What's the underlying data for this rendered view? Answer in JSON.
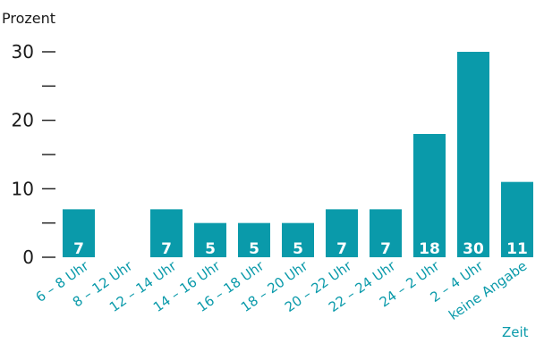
{
  "colors": {
    "bar": "#0a9aaa",
    "category_label": "#0a9aaa",
    "axis": "#1a1a1a",
    "value_label": "#ffffff"
  },
  "chart_data": {
    "type": "bar",
    "ylabel": "Prozent",
    "xlabel": "Zeit",
    "ylim": [
      0,
      30
    ],
    "yticks": [
      0,
      10,
      20,
      30
    ],
    "categories": [
      "6 – 8 Uhr",
      "8 – 12 Uhr",
      "12 – 14 Uhr",
      "14 – 16 Uhr",
      "16 – 18 Uhr",
      "18 – 20 Uhr",
      "20 – 22 Uhr",
      "22 – 24 Uhr",
      "24 – 2 Uhr",
      "2 – 4 Uhr",
      "keine Angabe"
    ],
    "values": [
      7,
      0,
      7,
      5,
      5,
      5,
      7,
      7,
      18,
      30,
      11
    ],
    "value_labels": [
      "7",
      "",
      "7",
      "5",
      "5",
      "5",
      "7",
      "7",
      "18",
      "30",
      "11"
    ],
    "grid": false,
    "legend": "none"
  }
}
